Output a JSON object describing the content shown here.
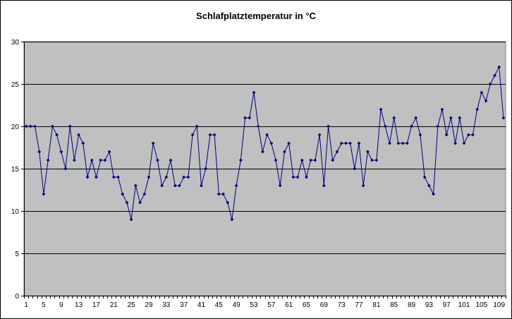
{
  "chart_data": {
    "type": "line",
    "title": "Schlafplatztemperatur in °C",
    "xlabel": "",
    "ylabel": "",
    "ylim": [
      0,
      30
    ],
    "yticks": [
      0,
      5,
      10,
      15,
      20,
      25,
      30
    ],
    "xtick_labels": [
      "1",
      "5",
      "9",
      "13",
      "17",
      "21",
      "25",
      "29",
      "33",
      "37",
      "41",
      "45",
      "49",
      "53",
      "57",
      "61",
      "65",
      "69",
      "73",
      "77",
      "81",
      "85",
      "89",
      "93",
      "97",
      "101",
      "105",
      "109"
    ],
    "grid": true,
    "legend": "none",
    "colors": {
      "line": "#000080",
      "plot_bg": "#c0c0c0",
      "grid": "#000000"
    },
    "x_start": 1,
    "values": [
      20,
      20,
      20,
      17,
      12,
      16,
      20,
      19,
      17,
      15,
      20,
      16,
      19,
      18,
      14,
      16,
      14,
      16,
      16,
      17,
      14,
      14,
      12,
      11,
      9,
      13,
      11,
      12,
      14,
      18,
      16,
      13,
      14,
      16,
      13,
      13,
      14,
      14,
      19,
      20,
      13,
      15,
      19,
      19,
      12,
      12,
      11,
      9,
      13,
      16,
      21,
      21,
      24,
      20,
      17,
      19,
      18,
      16,
      13,
      17,
      18,
      14,
      14,
      16,
      14,
      16,
      16,
      19,
      13,
      20,
      16,
      17,
      18,
      18,
      18,
      15,
      18,
      13,
      17,
      16,
      16,
      22,
      20,
      18,
      21,
      18,
      18,
      18,
      20,
      21,
      19,
      14,
      13,
      12,
      20,
      22,
      19,
      21,
      18,
      21,
      18,
      19,
      19,
      22,
      24,
      23,
      25,
      26,
      27,
      21
    ]
  }
}
